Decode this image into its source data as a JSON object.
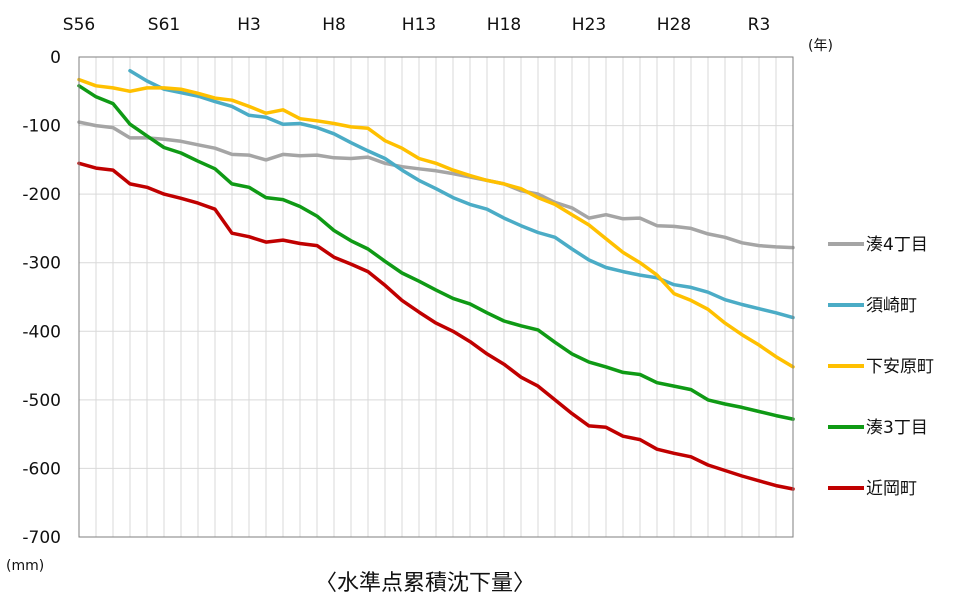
{
  "chart_data": {
    "type": "line",
    "title": "〈水準点累積沈下量〉",
    "ylabel": "(mm)",
    "xunit": "(年)",
    "ylim": [
      -700,
      0
    ],
    "yticks": [
      0,
      -100,
      -200,
      -300,
      -400,
      -500,
      -600,
      -700
    ],
    "xtick_labels": [
      "S56",
      "S61",
      "H3",
      "H8",
      "H13",
      "H18",
      "H23",
      "H28",
      "R3"
    ],
    "x": [
      1981,
      1982,
      1983,
      1984,
      1985,
      1986,
      1987,
      1988,
      1989,
      1990,
      1991,
      1992,
      1993,
      1994,
      1995,
      1996,
      1997,
      1998,
      1999,
      2000,
      2001,
      2002,
      2003,
      2004,
      2005,
      2006,
      2007,
      2008,
      2009,
      2010,
      2011,
      2012,
      2013,
      2014,
      2015,
      2016,
      2017,
      2018,
      2019,
      2020,
      2021,
      2022,
      2023
    ],
    "grid": true,
    "legend_position": "right",
    "series": [
      {
        "name": "湊4丁目",
        "color": "#a5a5a5",
        "values": [
          -95,
          -100,
          -103,
          -118,
          -118,
          -120,
          -123,
          -128,
          -133,
          -142,
          -143,
          -150,
          -142,
          -144,
          -143,
          -147,
          -148,
          -146,
          -155,
          -160,
          -163,
          -166,
          -170,
          -175,
          -180,
          -185,
          -195,
          -200,
          -212,
          -220,
          -235,
          -230,
          -236,
          -235,
          -246,
          -247,
          -250,
          -258,
          -263,
          -271,
          -275,
          -277,
          -278
        ]
      },
      {
        "name": "須崎町",
        "color": "#4bacc6",
        "values": [
          null,
          null,
          null,
          -20,
          -35,
          -47,
          -52,
          -57,
          -65,
          -72,
          -85,
          -88,
          -98,
          -97,
          -103,
          -112,
          -125,
          -137,
          -148,
          -165,
          -180,
          -192,
          -205,
          -215,
          -222,
          -235,
          -246,
          -256,
          -263,
          -280,
          -296,
          -307,
          -313,
          -318,
          -322,
          -332,
          -336,
          -343,
          -354,
          -361,
          -367,
          -373,
          -380
        ]
      },
      {
        "name": "下安原町",
        "color": "#ffc000",
        "values": [
          -33,
          -42,
          -45,
          -50,
          -45,
          -45,
          -47,
          -53,
          -60,
          -63,
          -72,
          -82,
          -77,
          -90,
          -93,
          -97,
          -102,
          -104,
          -122,
          -133,
          -148,
          -155,
          -165,
          -173,
          -180,
          -185,
          -192,
          -205,
          -215,
          -230,
          -245,
          -265,
          -285,
          -300,
          -318,
          -345,
          -355,
          -368,
          -388,
          -405,
          -420,
          -437,
          -452
        ]
      },
      {
        "name": "湊3丁目",
        "color": "#0f9a15",
        "values": [
          -42,
          -58,
          -68,
          -98,
          -115,
          -132,
          -140,
          -152,
          -163,
          -185,
          -190,
          -205,
          -208,
          -218,
          -232,
          -253,
          -268,
          -280,
          -298,
          -315,
          -327,
          -340,
          -352,
          -360,
          -373,
          -385,
          -392,
          -398,
          -416,
          -433,
          -445,
          -452,
          -460,
          -463,
          -475,
          -480,
          -485,
          -500,
          -506,
          -511,
          -517,
          -523,
          -528
        ]
      },
      {
        "name": "近岡町",
        "color": "#c00000",
        "values": [
          -155,
          -162,
          -165,
          -185,
          -190,
          -200,
          -206,
          -213,
          -222,
          -257,
          -262,
          -270,
          -267,
          -272,
          -275,
          -292,
          -302,
          -313,
          -333,
          -355,
          -372,
          -388,
          -400,
          -415,
          -433,
          -448,
          -467,
          -480,
          -500,
          -520,
          -538,
          -540,
          -553,
          -558,
          -572,
          -578,
          -583,
          -595,
          -603,
          -611,
          -618,
          -625,
          -630
        ]
      }
    ]
  }
}
